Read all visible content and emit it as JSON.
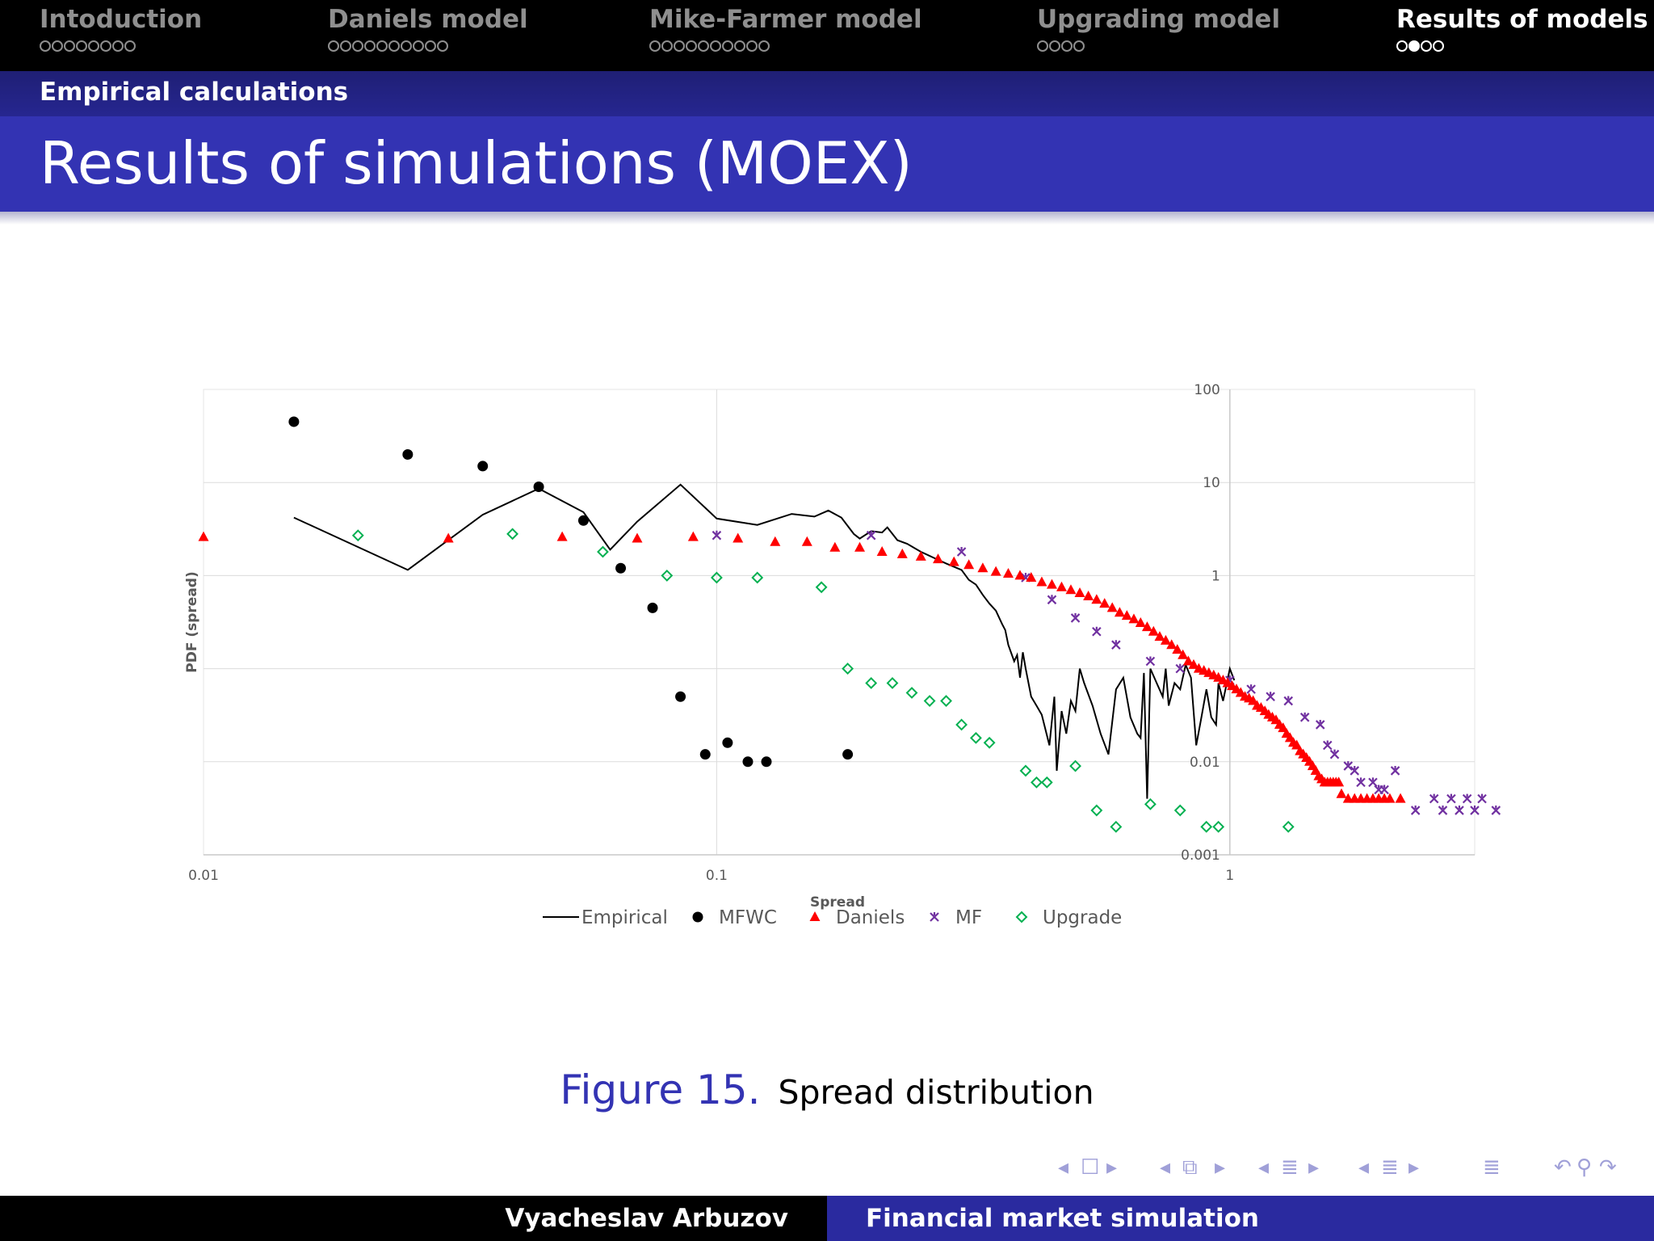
{
  "nav": {
    "sections": [
      {
        "title": "Intoduction",
        "dots": 8,
        "current": -1,
        "active": false
      },
      {
        "title": "Daniels model",
        "dots": 10,
        "current": -1,
        "active": false
      },
      {
        "title": "Mike-Farmer model",
        "dots": 10,
        "current": -1,
        "active": false
      },
      {
        "title": "Upgrading model",
        "dots": 4,
        "current": -1,
        "active": false
      },
      {
        "title": "Results of models",
        "dots": 4,
        "current": 1,
        "active": true
      }
    ]
  },
  "subsection": "Empirical calculations",
  "frame_title": "Results of simulations (MOEX)",
  "figure": {
    "label": "Figure 15.",
    "caption": "Spread distribution"
  },
  "footer": {
    "author": "Vyacheslav Arbuzov",
    "title": "Financial market simulation"
  },
  "colors": {
    "nav_bg": "#000000",
    "title_bg": "#3333b3",
    "subbar_bg": "#262690",
    "daniels": "#ff0000",
    "mf": "#7030a0",
    "upgrade": "#00b050",
    "mfwc": "#000000",
    "empirical": "#000000"
  },
  "chart_data": {
    "type": "scatter",
    "xlabel": "Spread",
    "ylabel": "PDF (spread)",
    "x_scale": "log",
    "y_scale": "log",
    "xlim": [
      0.01,
      3
    ],
    "ylim": [
      0.001,
      100
    ],
    "x_ticks": [
      {
        "value": 0.01,
        "label": "0.01"
      },
      {
        "value": 0.1,
        "label": "0.1"
      },
      {
        "value": 1,
        "label": "1"
      }
    ],
    "y_ticks": [
      {
        "value": 100,
        "label": "100"
      },
      {
        "value": 10,
        "label": "10"
      },
      {
        "value": 1,
        "label": "1"
      },
      {
        "value": 0.01,
        "label": "0.01"
      },
      {
        "value": 0.001,
        "label": "0.001"
      }
    ],
    "grid": true,
    "legend_position": "bottom",
    "series": [
      {
        "name": "Empirical",
        "kind": "line",
        "color": "#000000",
        "points": [
          [
            0.015,
            4.2
          ],
          [
            0.025,
            1.15
          ],
          [
            0.035,
            4.5
          ],
          [
            0.045,
            8.6
          ],
          [
            0.055,
            4.8
          ],
          [
            0.062,
            1.9
          ],
          [
            0.07,
            3.8
          ],
          [
            0.085,
            9.5
          ],
          [
            0.1,
            4.1
          ],
          [
            0.12,
            3.5
          ],
          [
            0.14,
            4.6
          ],
          [
            0.155,
            4.3
          ],
          [
            0.165,
            5.0
          ],
          [
            0.175,
            4.2
          ],
          [
            0.185,
            2.8
          ],
          [
            0.19,
            2.5
          ],
          [
            0.2,
            3.0
          ],
          [
            0.21,
            2.9
          ],
          [
            0.215,
            3.3
          ],
          [
            0.225,
            2.4
          ],
          [
            0.235,
            2.2
          ],
          [
            0.25,
            1.8
          ],
          [
            0.265,
            1.55
          ],
          [
            0.28,
            1.35
          ],
          [
            0.3,
            1.15
          ],
          [
            0.31,
            0.9
          ],
          [
            0.32,
            0.8
          ],
          [
            0.33,
            0.62
          ],
          [
            0.34,
            0.5
          ],
          [
            0.35,
            0.42
          ],
          [
            0.36,
            0.3
          ],
          [
            0.365,
            0.26
          ],
          [
            0.37,
            0.18
          ],
          [
            0.38,
            0.12
          ],
          [
            0.385,
            0.14
          ],
          [
            0.39,
            0.08
          ],
          [
            0.395,
            0.15
          ],
          [
            0.4,
            0.1
          ],
          [
            0.41,
            0.05
          ],
          [
            0.42,
            0.04
          ],
          [
            0.43,
            0.032
          ],
          [
            0.445,
            0.015
          ],
          [
            0.455,
            0.05
          ],
          [
            0.46,
            0.008
          ],
          [
            0.47,
            0.035
          ],
          [
            0.48,
            0.02
          ],
          [
            0.49,
            0.045
          ],
          [
            0.5,
            0.035
          ],
          [
            0.51,
            0.1
          ],
          [
            0.52,
            0.07
          ],
          [
            0.54,
            0.04
          ],
          [
            0.56,
            0.02
          ],
          [
            0.58,
            0.012
          ],
          [
            0.6,
            0.06
          ],
          [
            0.62,
            0.08
          ],
          [
            0.64,
            0.03
          ],
          [
            0.66,
            0.02
          ],
          [
            0.67,
            0.018
          ],
          [
            0.68,
            0.09
          ],
          [
            0.69,
            0.004
          ],
          [
            0.7,
            0.1
          ],
          [
            0.72,
            0.07
          ],
          [
            0.74,
            0.05
          ],
          [
            0.75,
            0.1
          ],
          [
            0.76,
            0.04
          ],
          [
            0.78,
            0.07
          ],
          [
            0.8,
            0.06
          ],
          [
            0.82,
            0.11
          ],
          [
            0.84,
            0.08
          ],
          [
            0.86,
            0.015
          ],
          [
            0.88,
            0.03
          ],
          [
            0.9,
            0.06
          ],
          [
            0.92,
            0.03
          ],
          [
            0.94,
            0.025
          ],
          [
            0.95,
            0.07
          ],
          [
            0.97,
            0.045
          ],
          [
            1.0,
            0.1
          ],
          [
            1.02,
            0.075
          ]
        ]
      },
      {
        "name": "MFWC",
        "kind": "marker",
        "marker": "circle",
        "color": "#000000",
        "points": [
          [
            0.015,
            45
          ],
          [
            0.025,
            20
          ],
          [
            0.035,
            15
          ],
          [
            0.045,
            9
          ],
          [
            0.055,
            3.9
          ],
          [
            0.065,
            1.2
          ],
          [
            0.075,
            0.45
          ],
          [
            0.085,
            0.05
          ],
          [
            0.095,
            0.012
          ],
          [
            0.105,
            0.016
          ],
          [
            0.115,
            0.01
          ],
          [
            0.125,
            0.01
          ],
          [
            0.18,
            0.012
          ]
        ]
      },
      {
        "name": "Daniels",
        "kind": "marker",
        "marker": "triangle",
        "color": "#ff0000",
        "points": [
          [
            0.01,
            2.6
          ],
          [
            0.03,
            2.5
          ],
          [
            0.05,
            2.6
          ],
          [
            0.07,
            2.5
          ],
          [
            0.09,
            2.6
          ],
          [
            0.11,
            2.5
          ],
          [
            0.13,
            2.3
          ],
          [
            0.15,
            2.3
          ],
          [
            0.17,
            2.0
          ],
          [
            0.19,
            2.0
          ],
          [
            0.21,
            1.8
          ],
          [
            0.23,
            1.7
          ],
          [
            0.25,
            1.6
          ],
          [
            0.27,
            1.5
          ],
          [
            0.29,
            1.4
          ],
          [
            0.31,
            1.3
          ],
          [
            0.33,
            1.2
          ],
          [
            0.35,
            1.1
          ],
          [
            0.37,
            1.05
          ],
          [
            0.39,
            1.0
          ],
          [
            0.41,
            0.95
          ],
          [
            0.43,
            0.85
          ],
          [
            0.45,
            0.8
          ],
          [
            0.47,
            0.75
          ],
          [
            0.49,
            0.7
          ],
          [
            0.51,
            0.65
          ],
          [
            0.53,
            0.6
          ],
          [
            0.55,
            0.55
          ],
          [
            0.57,
            0.5
          ],
          [
            0.59,
            0.45
          ],
          [
            0.61,
            0.4
          ],
          [
            0.63,
            0.37
          ],
          [
            0.65,
            0.34
          ],
          [
            0.67,
            0.31
          ],
          [
            0.69,
            0.28
          ],
          [
            0.71,
            0.25
          ],
          [
            0.73,
            0.22
          ],
          [
            0.75,
            0.2
          ],
          [
            0.77,
            0.18
          ],
          [
            0.79,
            0.16
          ],
          [
            0.81,
            0.14
          ],
          [
            0.83,
            0.12
          ],
          [
            0.85,
            0.11
          ],
          [
            0.87,
            0.1
          ],
          [
            0.89,
            0.095
          ],
          [
            0.91,
            0.09
          ],
          [
            0.93,
            0.085
          ],
          [
            0.95,
            0.08
          ],
          [
            0.97,
            0.075
          ],
          [
            0.99,
            0.07
          ],
          [
            1.01,
            0.065
          ],
          [
            1.03,
            0.06
          ],
          [
            1.05,
            0.055
          ],
          [
            1.07,
            0.05
          ],
          [
            1.09,
            0.048
          ],
          [
            1.11,
            0.045
          ],
          [
            1.13,
            0.04
          ],
          [
            1.15,
            0.038
          ],
          [
            1.17,
            0.035
          ],
          [
            1.19,
            0.032
          ],
          [
            1.21,
            0.03
          ],
          [
            1.23,
            0.028
          ],
          [
            1.25,
            0.025
          ],
          [
            1.27,
            0.023
          ],
          [
            1.29,
            0.02
          ],
          [
            1.31,
            0.018
          ],
          [
            1.33,
            0.016
          ],
          [
            1.35,
            0.015
          ],
          [
            1.37,
            0.013
          ],
          [
            1.39,
            0.012
          ],
          [
            1.41,
            0.011
          ],
          [
            1.43,
            0.01
          ],
          [
            1.45,
            0.009
          ],
          [
            1.47,
            0.008
          ],
          [
            1.49,
            0.007
          ],
          [
            1.51,
            0.0065
          ],
          [
            1.53,
            0.006
          ],
          [
            1.55,
            0.006
          ],
          [
            1.57,
            0.006
          ],
          [
            1.59,
            0.006
          ],
          [
            1.61,
            0.006
          ],
          [
            1.63,
            0.006
          ],
          [
            1.65,
            0.0045
          ],
          [
            1.7,
            0.004
          ],
          [
            1.75,
            0.004
          ],
          [
            1.8,
            0.004
          ],
          [
            1.85,
            0.004
          ],
          [
            1.9,
            0.004
          ],
          [
            1.95,
            0.004
          ],
          [
            2.0,
            0.004
          ],
          [
            2.05,
            0.004
          ],
          [
            2.15,
            0.004
          ]
        ]
      },
      {
        "name": "MF",
        "kind": "marker",
        "marker": "cross",
        "color": "#7030a0",
        "points": [
          [
            0.1,
            2.7
          ],
          [
            0.2,
            2.7
          ],
          [
            0.3,
            1.8
          ],
          [
            0.4,
            0.95
          ],
          [
            0.45,
            0.55
          ],
          [
            0.5,
            0.35
          ],
          [
            0.55,
            0.25
          ],
          [
            0.6,
            0.18
          ],
          [
            0.7,
            0.12
          ],
          [
            0.8,
            0.1
          ],
          [
            1.0,
            0.075
          ],
          [
            1.1,
            0.06
          ],
          [
            1.2,
            0.05
          ],
          [
            1.3,
            0.045
          ],
          [
            1.4,
            0.03
          ],
          [
            1.5,
            0.025
          ],
          [
            1.55,
            0.015
          ],
          [
            1.6,
            0.012
          ],
          [
            1.7,
            0.009
          ],
          [
            1.75,
            0.008
          ],
          [
            1.8,
            0.006
          ],
          [
            1.9,
            0.006
          ],
          [
            1.95,
            0.005
          ],
          [
            2.0,
            0.005
          ],
          [
            2.1,
            0.008
          ],
          [
            2.3,
            0.003
          ],
          [
            2.5,
            0.004
          ],
          [
            2.6,
            0.003
          ],
          [
            2.7,
            0.004
          ],
          [
            2.8,
            0.003
          ],
          [
            2.9,
            0.004
          ],
          [
            3.0,
            0.003
          ],
          [
            3.1,
            0.004
          ],
          [
            3.3,
            0.003
          ],
          [
            3.5,
            0.004
          ]
        ]
      },
      {
        "name": "Upgrade",
        "kind": "marker",
        "marker": "diamond",
        "color": "#00b050",
        "points": [
          [
            0.02,
            2.7
          ],
          [
            0.04,
            2.8
          ],
          [
            0.06,
            1.8
          ],
          [
            0.08,
            1.0
          ],
          [
            0.1,
            0.95
          ],
          [
            0.12,
            0.95
          ],
          [
            0.16,
            0.75
          ],
          [
            0.18,
            0.1
          ],
          [
            0.2,
            0.07
          ],
          [
            0.22,
            0.07
          ],
          [
            0.24,
            0.055
          ],
          [
            0.26,
            0.045
          ],
          [
            0.28,
            0.045
          ],
          [
            0.3,
            0.025
          ],
          [
            0.32,
            0.018
          ],
          [
            0.34,
            0.016
          ],
          [
            0.4,
            0.008
          ],
          [
            0.42,
            0.006
          ],
          [
            0.44,
            0.006
          ],
          [
            0.5,
            0.009
          ],
          [
            0.55,
            0.003
          ],
          [
            0.6,
            0.002
          ],
          [
            0.7,
            0.0035
          ],
          [
            0.8,
            0.003
          ],
          [
            0.9,
            0.002
          ],
          [
            0.95,
            0.002
          ],
          [
            1.3,
            0.002
          ]
        ]
      }
    ]
  }
}
